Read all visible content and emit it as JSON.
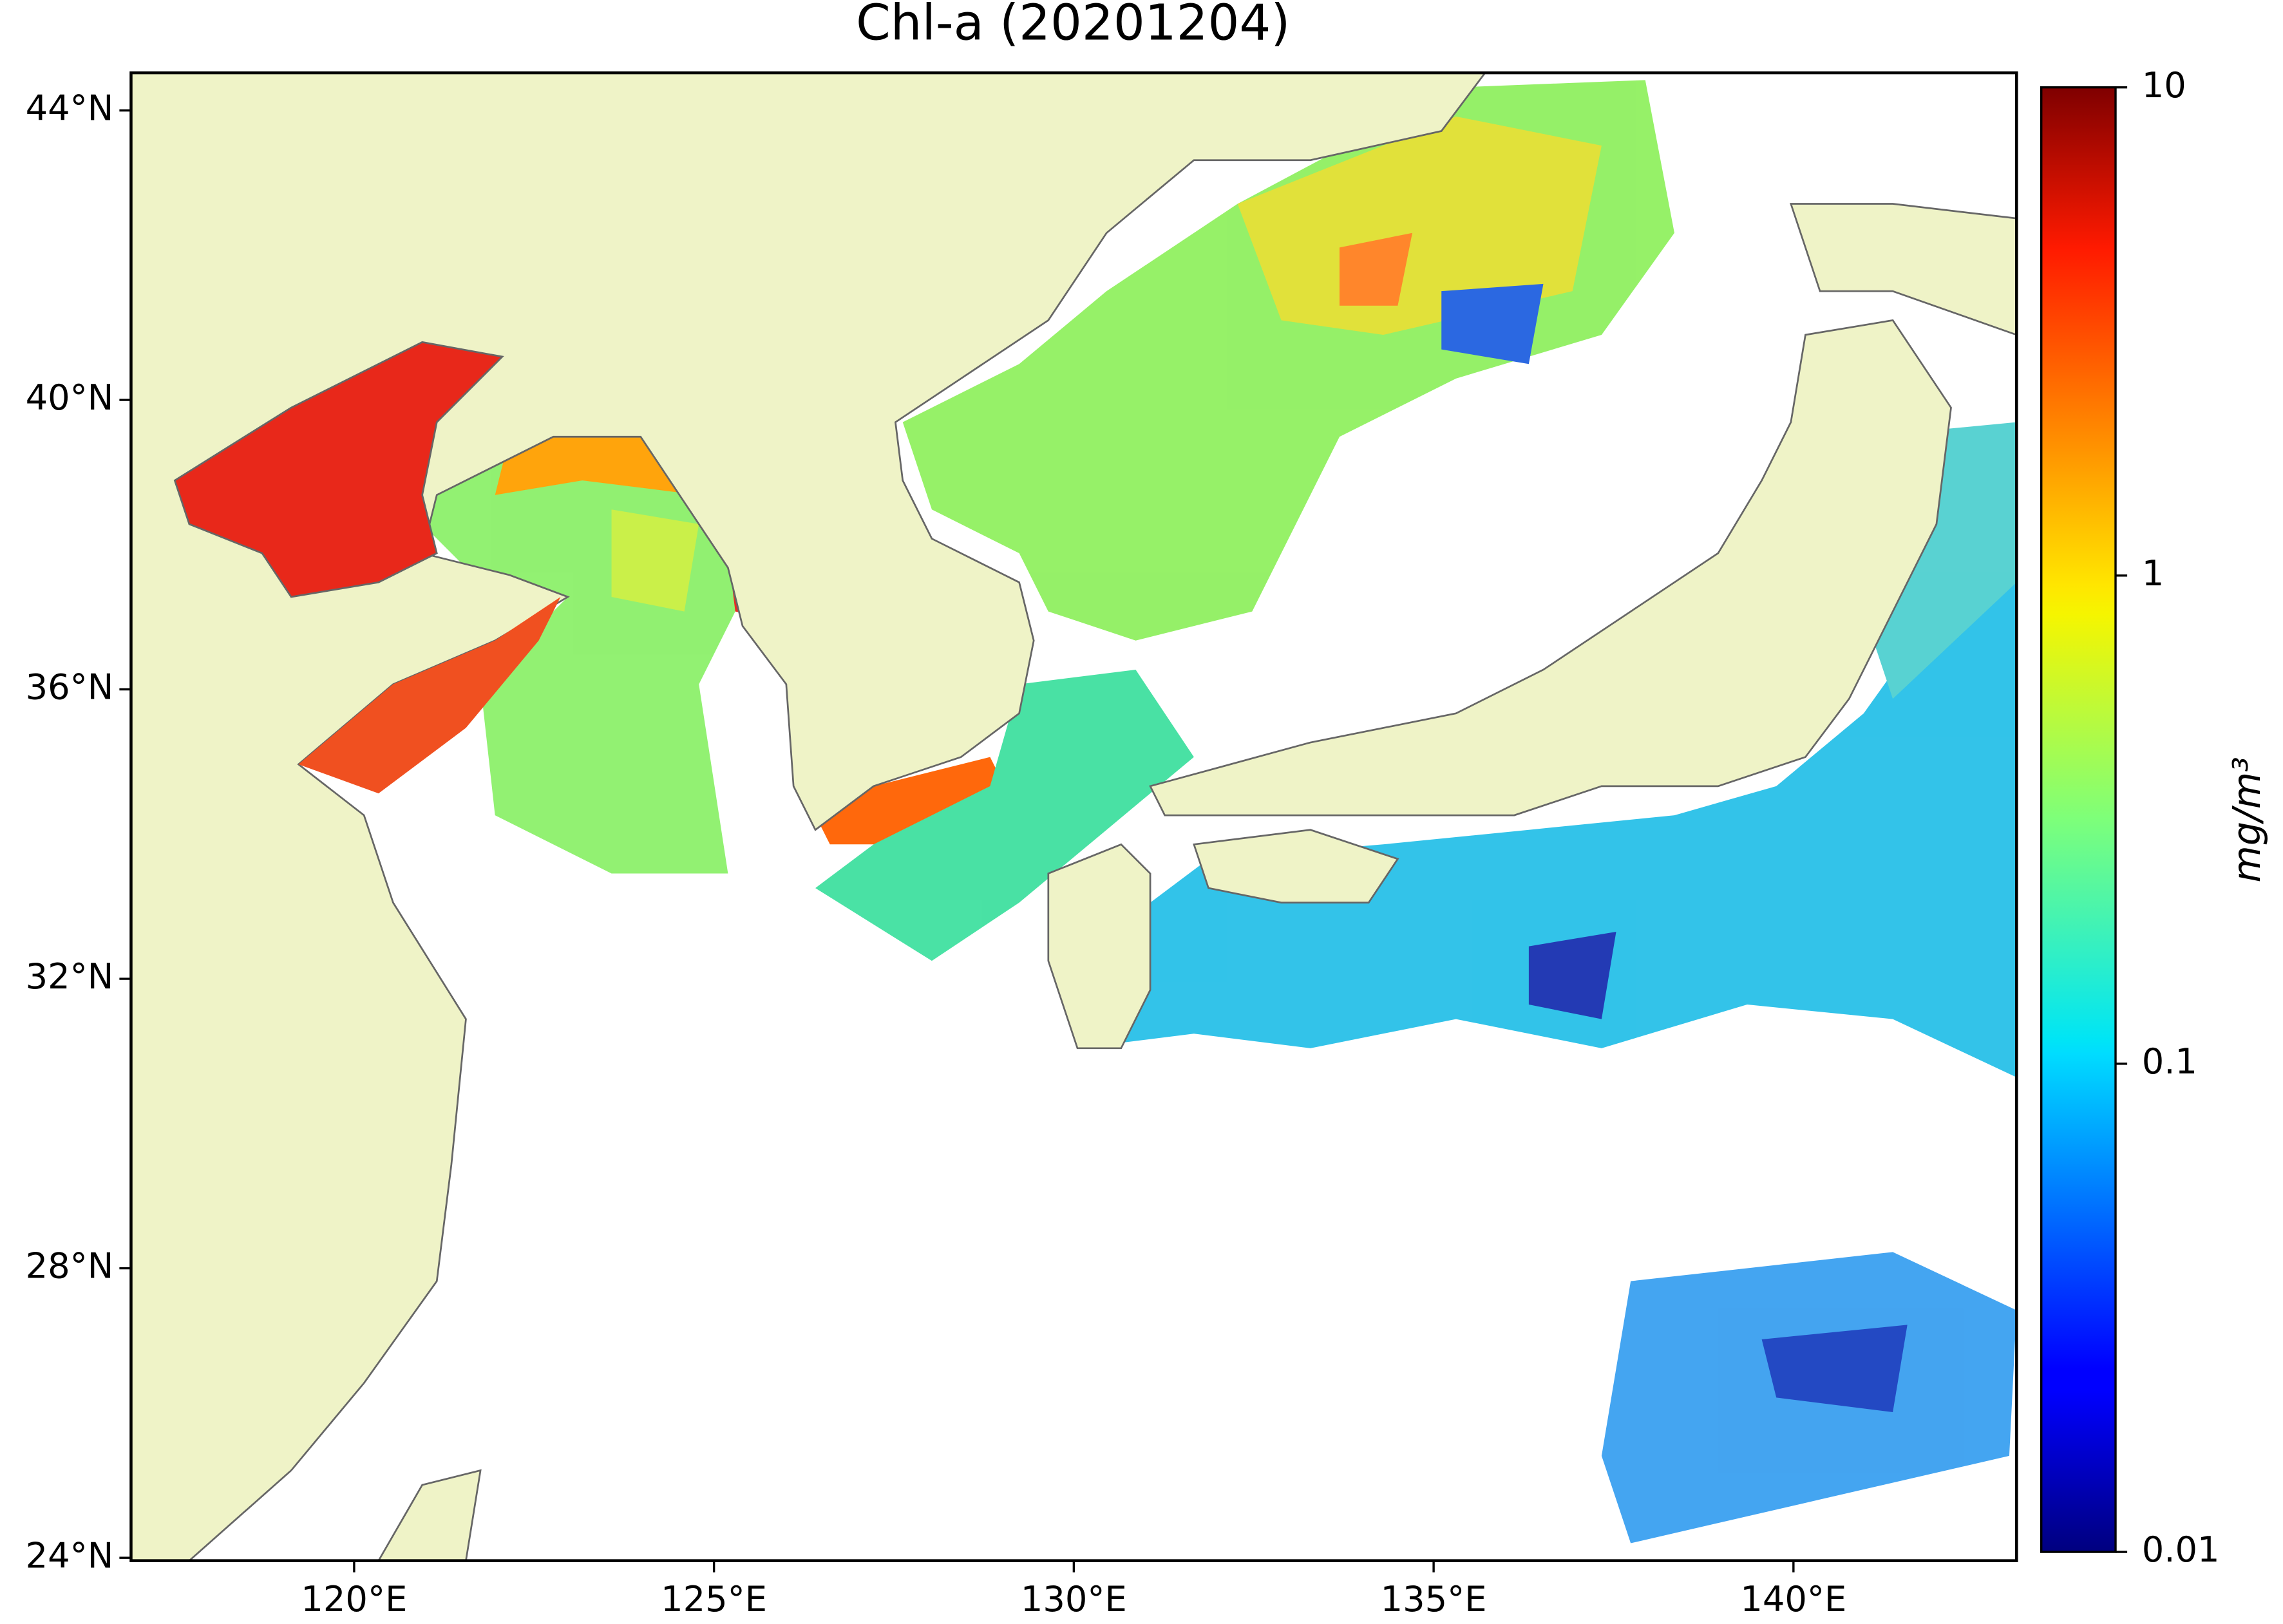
{
  "chart_data": {
    "type": "map",
    "title": "Chl-a (20201204)",
    "xlim": [
      116.9,
      143.1
    ],
    "ylim": [
      23.96,
      44.52
    ],
    "xticks": [
      {
        "value": 120,
        "label": "120°E"
      },
      {
        "value": 125,
        "label": "125°E"
      },
      {
        "value": 130,
        "label": "130°E"
      },
      {
        "value": 135,
        "label": "135°E"
      },
      {
        "value": 140,
        "label": "140°E"
      }
    ],
    "yticks": [
      {
        "value": 24,
        "label": "24°N"
      },
      {
        "value": 28,
        "label": "28°N"
      },
      {
        "value": 32,
        "label": "32°N"
      },
      {
        "value": 36,
        "label": "36°N"
      },
      {
        "value": 40,
        "label": "40°N"
      },
      {
        "value": 44,
        "label": "44°N"
      }
    ],
    "land_color": "#eff3c7",
    "colorbar": {
      "label": "mg/m³",
      "colormap": "jet",
      "scale": "log",
      "lim": [
        0.01,
        10
      ],
      "ticks": [
        0.01,
        0.1,
        1,
        10
      ]
    }
  }
}
